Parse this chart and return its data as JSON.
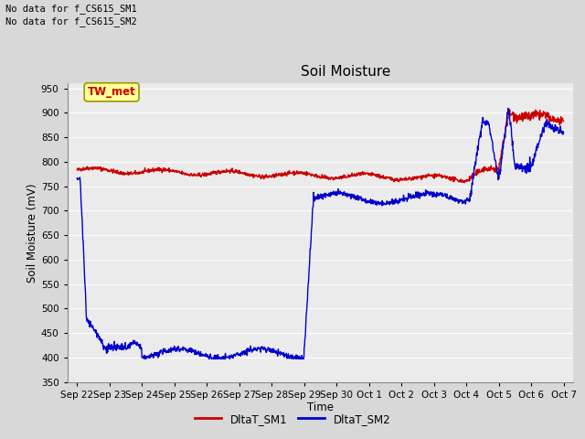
{
  "title": "Soil Moisture",
  "xlabel": "Time",
  "ylabel": "Soil Moisture (mV)",
  "ylim": [
    350,
    960
  ],
  "yticks": [
    350,
    400,
    450,
    500,
    550,
    600,
    650,
    700,
    750,
    800,
    850,
    900,
    950
  ],
  "background_color": "#d8d8d8",
  "plot_bg_color": "#ebebeb",
  "grid_color": "#ffffff",
  "line1_color": "#cc0000",
  "line2_color": "#0000cc",
  "annotations": [
    "No data for f_CS615_SM1",
    "No data for f_CS615_SM2"
  ],
  "legend_label1": "DltaT_SM1",
  "legend_label2": "DltaT_SM2",
  "tw_met_label": "TW_met",
  "tw_met_color": "#ffff99",
  "tw_met_border": "#999900",
  "x_tick_labels": [
    "Sep 22",
    "Sep 23",
    "Sep 24",
    "Sep 25",
    "Sep 26",
    "Sep 27",
    "Sep 28",
    "Sep 29",
    "Sep 30",
    "Oct 1",
    "Oct 2",
    "Oct 3",
    "Oct 4",
    "Oct 5",
    "Oct 6",
    "Oct 7"
  ],
  "x_tick_positions": [
    0,
    1,
    2,
    3,
    4,
    5,
    6,
    7,
    8,
    9,
    10,
    11,
    12,
    13,
    14,
    15
  ]
}
